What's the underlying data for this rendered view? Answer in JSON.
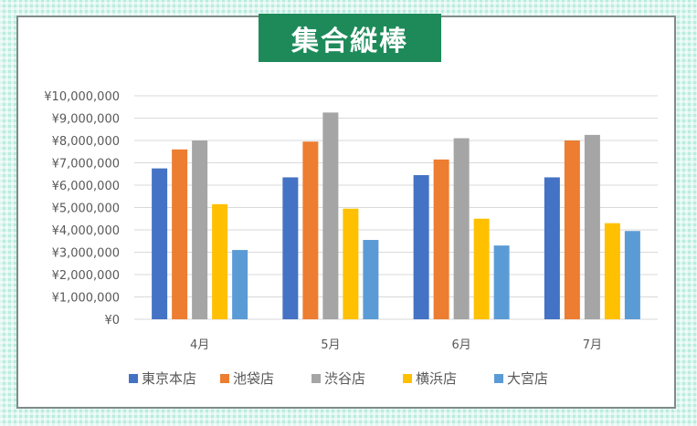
{
  "chart_data": {
    "type": "bar",
    "title": "集合縦棒",
    "categories": [
      "4月",
      "5月",
      "6月",
      "7月"
    ],
    "series": [
      {
        "name": "東京本店",
        "color": "#4472c4",
        "values": [
          6750000,
          6350000,
          6450000,
          6350000
        ]
      },
      {
        "name": "池袋店",
        "color": "#ed7d31",
        "values": [
          7600000,
          7950000,
          7150000,
          8000000
        ]
      },
      {
        "name": "渋谷店",
        "color": "#a5a5a5",
        "values": [
          8000000,
          9250000,
          8100000,
          8250000
        ]
      },
      {
        "name": "横浜店",
        "color": "#ffc000",
        "values": [
          5150000,
          4950000,
          4500000,
          4300000
        ]
      },
      {
        "name": "大宮店",
        "color": "#5b9bd5",
        "values": [
          3100000,
          3550000,
          3300000,
          3950000
        ]
      }
    ],
    "yticks": [
      "¥0",
      "¥1,000,000",
      "¥2,000,000",
      "¥3,000,000",
      "¥4,000,000",
      "¥5,000,000",
      "¥6,000,000",
      "¥7,000,000",
      "¥8,000,000",
      "¥9,000,000",
      "¥10,000,000"
    ],
    "ylim": [
      0,
      10000000
    ],
    "grid": true,
    "legend": "bottom"
  }
}
